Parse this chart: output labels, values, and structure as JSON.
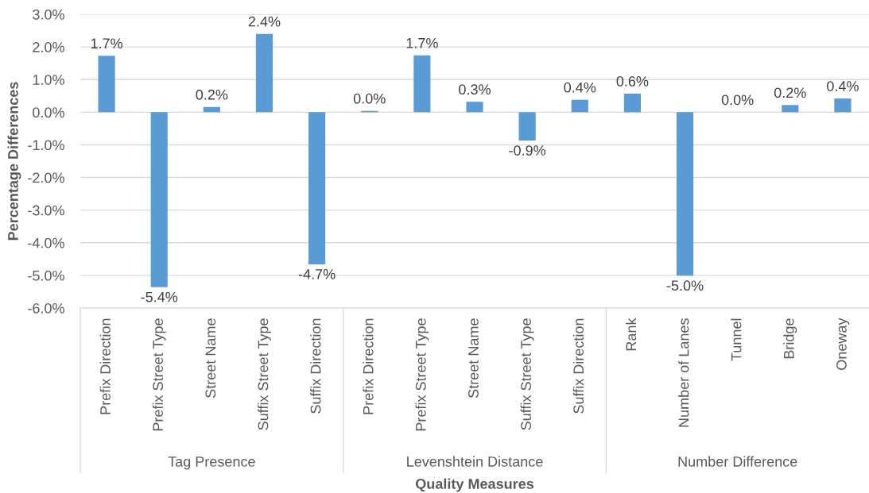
{
  "chart_data": {
    "type": "bar",
    "xlabel": "Quality Measures",
    "ylabel": "Percentage Differences",
    "categories": [
      "Prefix Direction",
      "Prefix Street Type",
      "Street Name",
      "Suffix Street Type",
      "Suffix Direction",
      "Prefix Direction",
      "Prefix Street Type",
      "Street Name",
      "Suffix Street Type",
      "Suffix Direction",
      "Rank",
      "Number of Lanes",
      "Tunnel",
      "Bridge",
      "Oneway"
    ],
    "values": [
      1.73,
      -5.36,
      0.16,
      2.4,
      -4.66,
      0.04,
      1.74,
      0.32,
      -0.87,
      0.38,
      0.57,
      -5.01,
      0,
      0.22,
      0.42
    ],
    "value_labels": [
      "1.7%",
      "-5.4%",
      "0.2%",
      "2.4%",
      "-4.7%",
      "0.0%",
      "1.7%",
      "0.3%",
      "-0.9%",
      "0.4%",
      "0.6%",
      "-5.0%",
      "0.0%",
      "0.2%",
      "0.4%"
    ],
    "color": "#5b9bd5",
    "ylim": [
      -6,
      3
    ],
    "yticks": [
      {
        "value": -6,
        "label": "-6.0%"
      },
      {
        "value": -5,
        "label": "-5.0%"
      },
      {
        "value": -4,
        "label": "-4.0%"
      },
      {
        "value": -3,
        "label": "-3.0%"
      },
      {
        "value": -2,
        "label": "-2.0%"
      },
      {
        "value": -1,
        "label": "-1.0%"
      },
      {
        "value": 0,
        "label": "0.0%"
      },
      {
        "value": 1,
        "label": "1.0%"
      },
      {
        "value": 2,
        "label": "2.0%"
      },
      {
        "value": 3,
        "label": "3.0%"
      }
    ],
    "grid": "y",
    "annotations": [
      "Tag Presence",
      "Levenshtein Distance",
      "Number Difference"
    ]
  }
}
